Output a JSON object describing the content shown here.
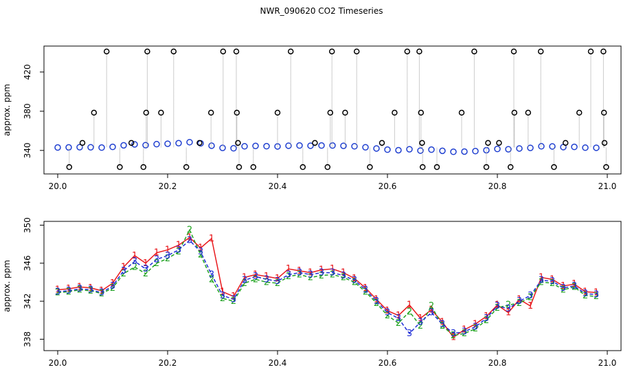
{
  "chart_data": [
    {
      "type": "scatter",
      "title": "NWR_090620  CO2 Timeseries",
      "ylabel": "approx. ppm",
      "xlim": [
        19.975,
        21.025
      ],
      "ylim": [
        316,
        446.5
      ],
      "xticks": [
        {
          "value": 20,
          "label": "20.0"
        },
        20.2,
        20.4,
        20.6,
        20.8,
        {
          "value": 21,
          "label": "21.0"
        }
      ],
      "yticks": [
        340,
        380,
        420
      ],
      "x": [
        20.0,
        20.02,
        20.04,
        20.06,
        20.08,
        20.1,
        20.12,
        20.14,
        20.16,
        20.18,
        20.2,
        20.22,
        20.24,
        20.26,
        20.28,
        20.3,
        20.32,
        20.34,
        20.36,
        20.38,
        20.4,
        20.42,
        20.44,
        20.46,
        20.48,
        20.5,
        20.52,
        20.54,
        20.56,
        20.58,
        20.6,
        20.62,
        20.64,
        20.66,
        20.68,
        20.7,
        20.72,
        20.74,
        20.76,
        20.78,
        20.8,
        20.82,
        20.84,
        20.86,
        20.88,
        20.9,
        20.92,
        20.94,
        20.96,
        20.98
      ],
      "series": [
        {
          "color": "#1f3fd0",
          "values": [
            343,
            343.1,
            343.3,
            343.2,
            342.9,
            343.6,
            345.2,
            346.2,
            345.4,
            346.4,
            346.8,
            347.4,
            348.4,
            347.2,
            344.8,
            342.6,
            342.2,
            344.2,
            344.6,
            344.3,
            344.1,
            344.8,
            345,
            344.8,
            345,
            345,
            344.7,
            344.2,
            343.2,
            342,
            340.8,
            340.2,
            341.2,
            339.8,
            340.8,
            339.6,
            338.6,
            338.8,
            339.3,
            340.2,
            341.5,
            341.2,
            342,
            342.6,
            344.2,
            344.1,
            343.4,
            343.6,
            342.8,
            342.7
          ]
        },
        {
          "color": "#000000",
          "x": [
            20.089,
            20.163,
            20.211,
            20.301,
            20.325,
            20.424,
            20.499,
            20.544,
            20.636,
            20.658,
            20.758,
            20.83,
            20.879,
            20.97,
            20.993,
            20.066,
            20.161,
            20.188,
            20.279,
            20.326,
            20.4,
            20.496,
            20.523,
            20.613,
            20.661,
            20.735,
            20.831,
            20.856,
            20.949,
            20.994,
            20.021,
            20.113,
            20.156,
            20.234,
            20.33,
            20.356,
            20.446,
            20.491,
            20.568,
            20.664,
            20.69,
            20.78,
            20.824,
            20.903,
            20.998,
            20.045,
            20.134,
            20.258,
            20.328,
            20.468,
            20.59,
            20.663,
            20.783,
            20.803,
            20.924,
            20.995
          ],
          "values": [
            441,
            441,
            441,
            441,
            441,
            441,
            441,
            441,
            441,
            441,
            441,
            441,
            441,
            441,
            441,
            378.5,
            378.5,
            378.5,
            378.5,
            378.5,
            378.5,
            378.5,
            378.5,
            378.5,
            378.5,
            378.5,
            378.5,
            378.5,
            378.5,
            378.5,
            323,
            323,
            323,
            323,
            323,
            323,
            323,
            323,
            323,
            323,
            323,
            323,
            323,
            323,
            323,
            347.7,
            347.7,
            347.7,
            347.7,
            347.7,
            347.7,
            347.7,
            347.7,
            347.7,
            347.7,
            347.7
          ]
        }
      ]
    },
    {
      "type": "line",
      "ylabel": "approx. ppm",
      "xlim": [
        19.975,
        21.025
      ],
      "ylim": [
        336.8,
        350.4
      ],
      "xticks": [
        {
          "value": 20,
          "label": "20.0"
        },
        20.2,
        20.4,
        20.6,
        20.8,
        {
          "value": 21,
          "label": "21.0"
        }
      ],
      "yticks": [
        338,
        342,
        346,
        350
      ],
      "x": [
        20.0,
        20.02,
        20.04,
        20.06,
        20.08,
        20.1,
        20.12,
        20.14,
        20.16,
        20.18,
        20.2,
        20.22,
        20.24,
        20.26,
        20.28,
        20.3,
        20.32,
        20.34,
        20.36,
        20.38,
        20.4,
        20.42,
        20.44,
        20.46,
        20.48,
        20.5,
        20.52,
        20.54,
        20.56,
        20.58,
        20.6,
        20.62,
        20.64,
        20.66,
        20.68,
        20.7,
        20.72,
        20.74,
        20.76,
        20.78,
        20.8,
        20.82,
        20.84,
        20.86,
        20.88,
        20.9,
        20.92,
        20.94,
        20.96,
        20.98
      ],
      "series": [
        {
          "name": "1",
          "color": "#e8181c",
          "values": [
            343.2,
            343.3,
            343.5,
            343.4,
            343.1,
            343.9,
            345.6,
            346.8,
            346,
            347.1,
            347.4,
            347.9,
            348.7,
            347.6,
            348.6,
            343,
            342.5,
            344.5,
            344.8,
            344.6,
            344.4,
            345.4,
            345.2,
            345,
            345.3,
            345.4,
            345,
            344.4,
            343.4,
            342.2,
            341,
            340.5,
            341.6,
            340.2,
            341.1,
            339.8,
            338.2,
            339,
            339.6,
            340.4,
            341.6,
            340.8,
            342.2,
            341.5,
            344.5,
            344.3,
            343.6,
            343.8,
            343,
            342.9
          ]
        },
        {
          "name": "2",
          "color": "#1fa31f",
          "values": [
            342.9,
            343,
            343.2,
            343.1,
            342.8,
            343.4,
            344.9,
            345.6,
            344.9,
            346,
            346.5,
            347.2,
            349.5,
            346.9,
            344.3,
            342.3,
            342,
            343.9,
            344.3,
            344,
            343.9,
            344.6,
            344.8,
            344.5,
            344.7,
            344.8,
            344.5,
            344,
            343,
            341.8,
            340.5,
            339.7,
            340.9,
            339.4,
            341.5,
            339.4,
            338.4,
            338.6,
            339.1,
            340,
            341.3,
            341.6,
            341.8,
            342.4,
            344,
            343.9,
            343.2,
            343.5,
            342.6,
            342.5
          ]
        },
        {
          "name": "3",
          "color": "#1c2bd6",
          "values": [
            343,
            343.1,
            343.3,
            343.2,
            342.9,
            343.6,
            345.2,
            346.2,
            345.4,
            346.4,
            346.8,
            347.4,
            348.4,
            347.2,
            344.8,
            342.6,
            342.2,
            344.2,
            344.6,
            344.3,
            344.1,
            344.8,
            345,
            344.8,
            345,
            345,
            344.7,
            344.2,
            343.2,
            342,
            340.8,
            340.2,
            338.6,
            339.8,
            340.8,
            339.6,
            338.6,
            338.8,
            339.3,
            340.2,
            341.5,
            341.2,
            342,
            342.6,
            344.2,
            344.1,
            343.4,
            343.6,
            342.8,
            342.7
          ]
        }
      ]
    }
  ]
}
